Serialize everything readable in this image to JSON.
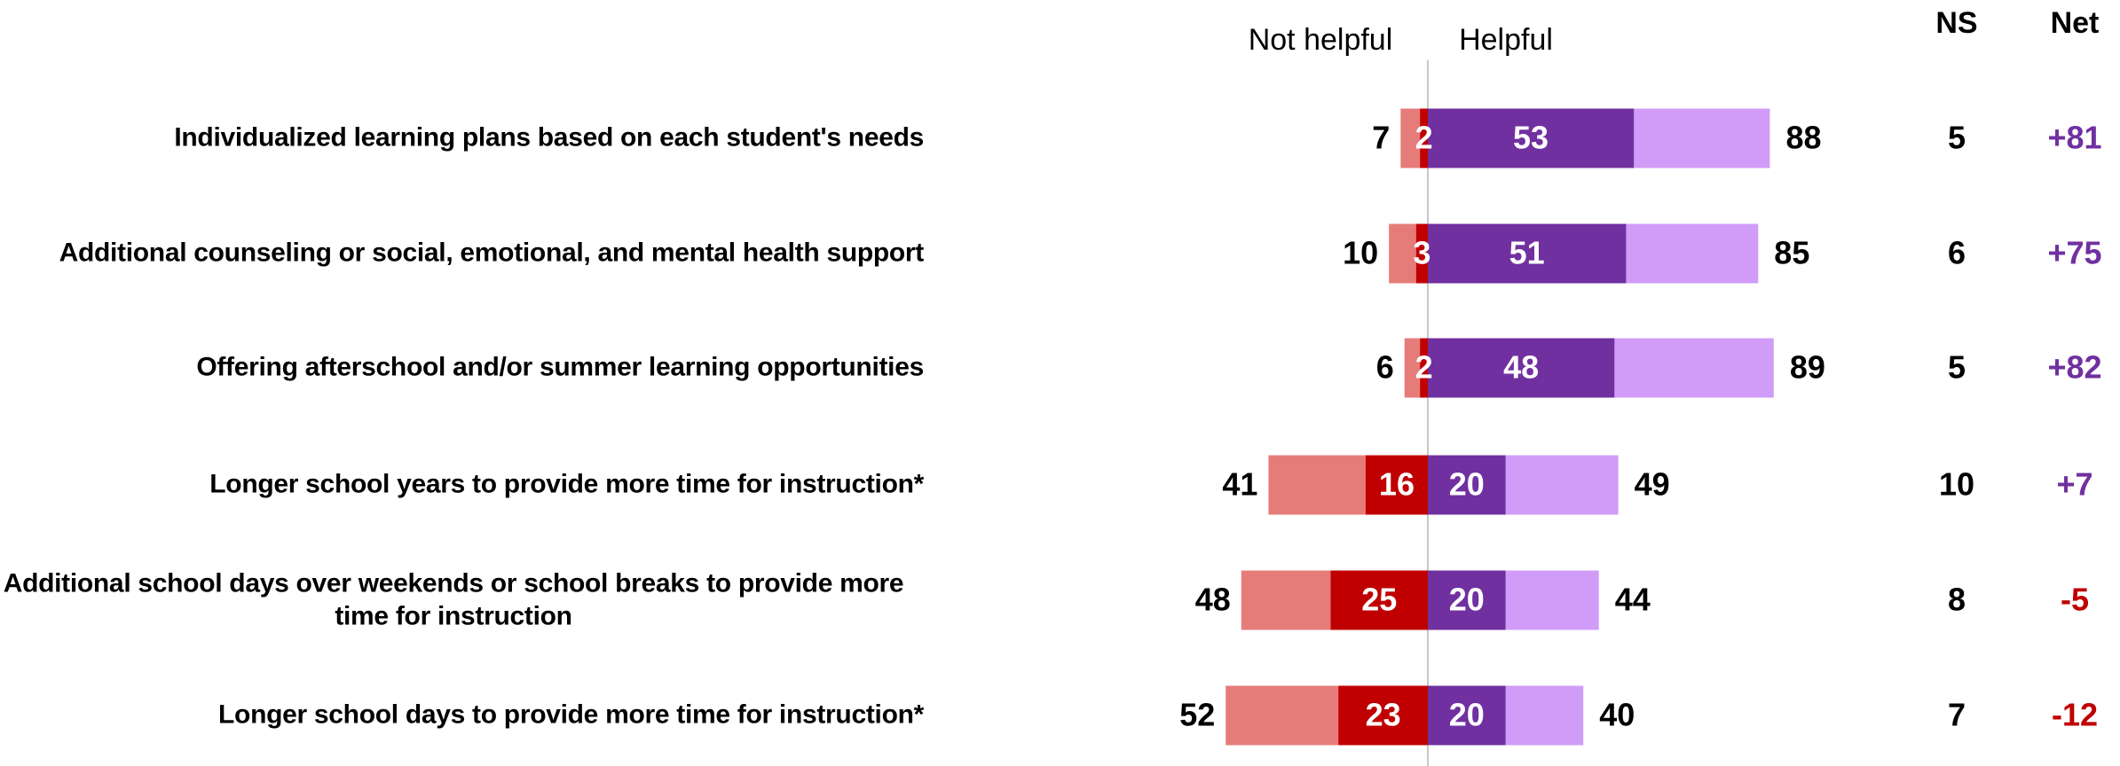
{
  "chart_data": {
    "type": "diverging_bar",
    "categories": [
      "Individualized learning plans based on each student's needs",
      "Additional counseling or social, emotional, and mental health support",
      "Offering afterschool and/or summer learning opportunities",
      "Longer school years to provide more time for instruction*",
      "Additional school days over weekends or school breaks to provide more time for instruction",
      "Longer school days to provide more time for instruction*"
    ],
    "not_helpful": {
      "label": "Not helpful",
      "values": [
        7,
        10,
        6,
        41,
        48,
        52
      ],
      "strong_values": [
        2,
        3,
        2,
        16,
        25,
        23
      ],
      "color": "#e57c7a",
      "strong_color": "#c00000"
    },
    "helpful": {
      "label": "Helpful",
      "values": [
        88,
        85,
        89,
        49,
        44,
        40
      ],
      "strong_values": [
        53,
        51,
        48,
        20,
        20,
        20
      ],
      "color": "#d09cf7",
      "strong_color": "#7030a0"
    },
    "ns": {
      "label": "NS",
      "values": [
        5,
        6,
        5,
        10,
        8,
        7
      ]
    },
    "net": {
      "label": "Net",
      "values": [
        81,
        75,
        82,
        7,
        -5,
        -12
      ],
      "value_labels": [
        "+81",
        "+75",
        "+82",
        "+7",
        "-5",
        "-12"
      ],
      "positive_color": "#7030a0",
      "negative_color": "#c00000"
    }
  }
}
